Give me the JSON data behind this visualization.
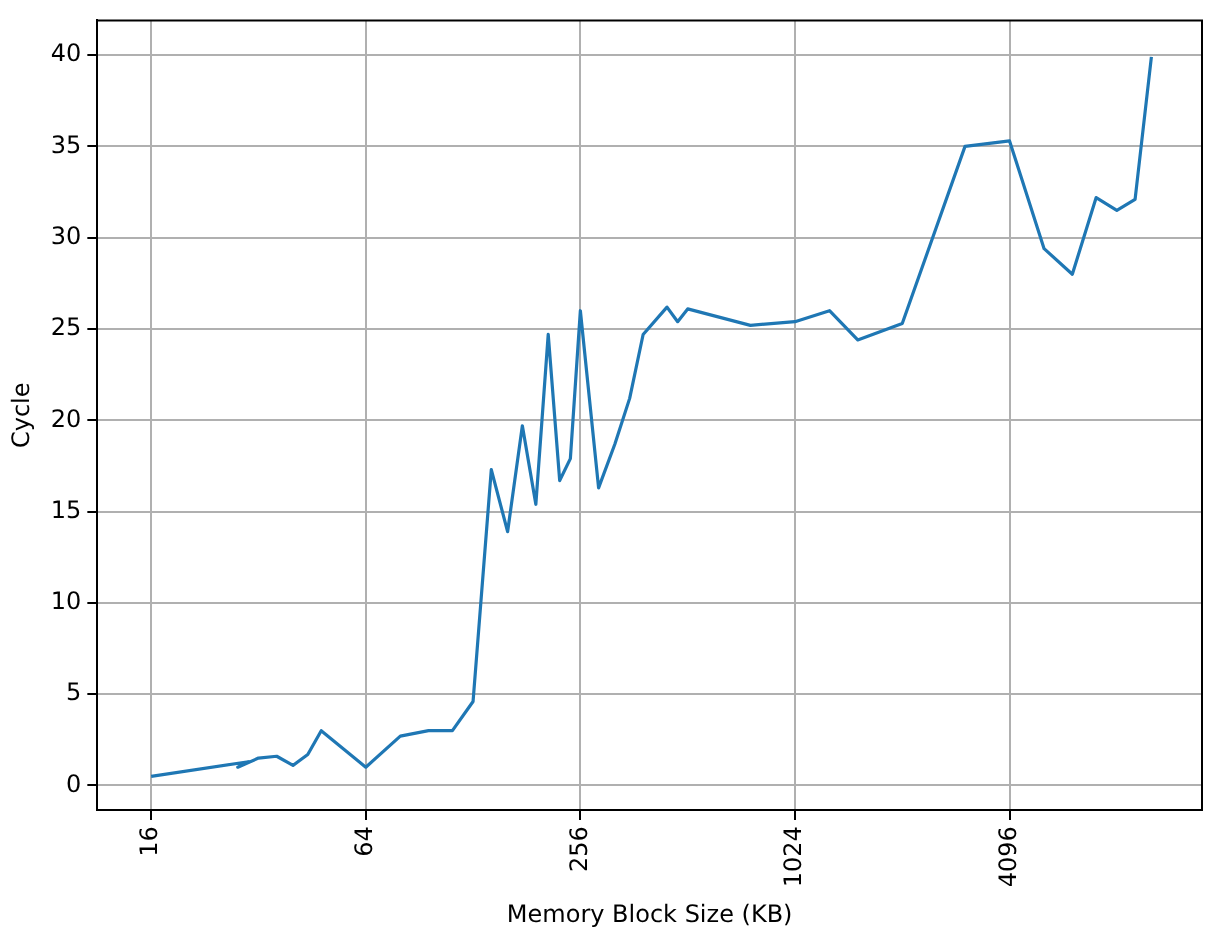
{
  "chart_data": {
    "type": "line",
    "xlabel": "Memory Block Size (KB)",
    "ylabel": "Cycle",
    "x": [
      16,
      30,
      28,
      32,
      36,
      40,
      44,
      48,
      64,
      80,
      96,
      112,
      128,
      144,
      160,
      176,
      192,
      208,
      224,
      240,
      256,
      288,
      320,
      352,
      384,
      448,
      480,
      512,
      768,
      1024,
      1280,
      1536,
      2048,
      3072,
      4096,
      5120,
      6144,
      7168,
      8192,
      9216,
      10240
    ],
    "series": [
      {
        "color": "#1f77b4",
        "values": [
          0.5,
          1.3,
          1.0,
          1.5,
          1.6,
          1.1,
          1.7,
          3.0,
          1.0,
          2.7,
          3.0,
          3.0,
          4.6,
          17.3,
          13.9,
          19.7,
          15.4,
          24.7,
          16.7,
          17.9,
          26.0,
          16.3,
          18.7,
          21.2,
          24.7,
          26.2,
          25.4,
          26.1,
          25.2,
          25.4,
          26.0,
          24.4,
          25.3,
          35.0,
          35.3,
          29.4,
          28.0,
          32.2,
          31.5,
          32.1,
          39.9
        ]
      }
    ],
    "log": "x",
    "xlim": [
      11.3,
      14200
    ],
    "xticks": [
      16,
      64,
      256,
      1024,
      4096
    ],
    "ylim": [
      -1.35,
      41.9
    ],
    "yticks": [
      0,
      5,
      10,
      15,
      20,
      25,
      30,
      35,
      40
    ],
    "grid": true,
    "legend": false,
    "marker": "none",
    "line_style": "solid"
  }
}
